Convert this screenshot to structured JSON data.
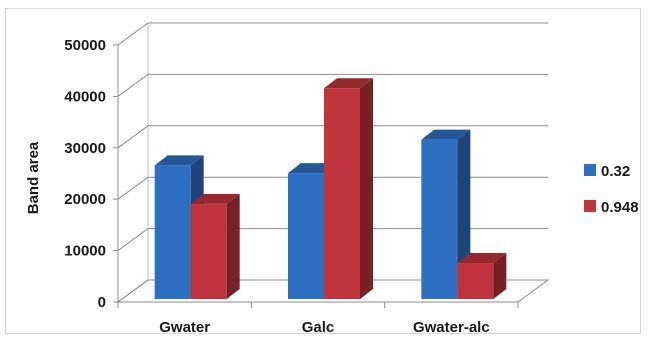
{
  "chart_data": {
    "type": "bar",
    "style": "3d-clustered-column",
    "categories": [
      "Gwater",
      "Galc",
      "Gwater-alc"
    ],
    "series": [
      {
        "name": "0.32",
        "values": [
          26000,
          24500,
          31000
        ],
        "color": "#2e6fc4"
      },
      {
        "name": "0.948",
        "values": [
          18500,
          41000,
          7000
        ],
        "color": "#c0353d"
      }
    ],
    "title": "",
    "xlabel": "",
    "ylabel": "Band area",
    "ylim": [
      0,
      50000
    ],
    "yticks": [
      0,
      10000,
      20000,
      30000,
      40000,
      50000
    ],
    "grid": true,
    "legend_position": "right"
  }
}
